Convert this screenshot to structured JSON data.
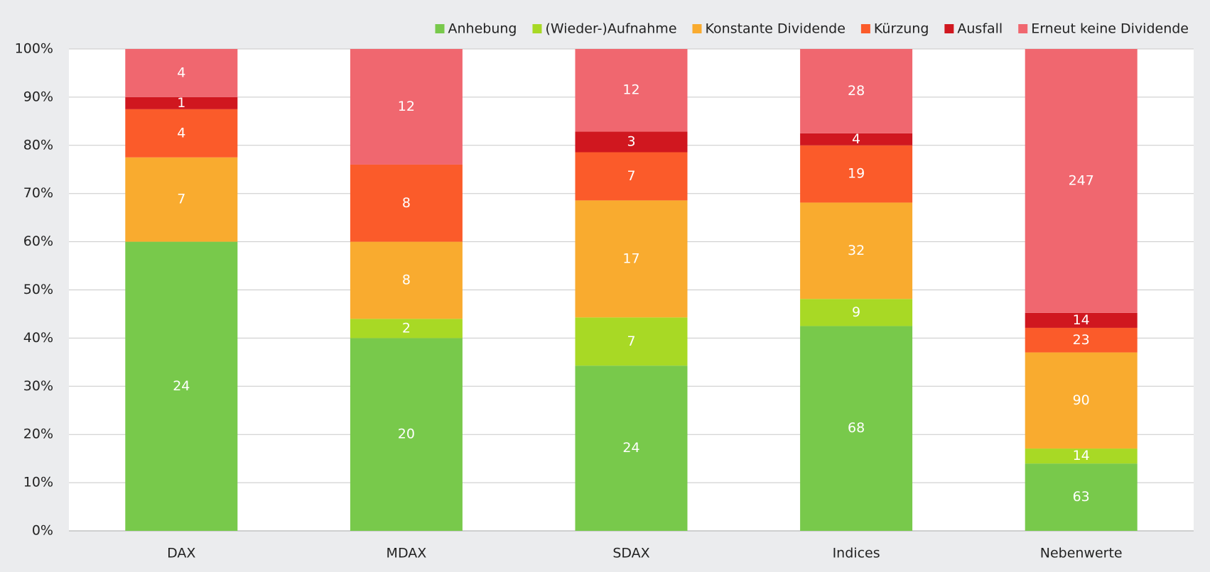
{
  "chart_data": {
    "type": "bar",
    "stacking": "percent",
    "categories": [
      "DAX",
      "MDAX",
      "SDAX",
      "Indices",
      "Nebenwerte"
    ],
    "series": [
      {
        "name": "Anhebung",
        "color": "#78c94b",
        "values": [
          24,
          20,
          24,
          68,
          63
        ]
      },
      {
        "name": "(Wieder-)Aufnahme",
        "color": "#a8d925",
        "values": [
          0,
          2,
          7,
          9,
          14
        ]
      },
      {
        "name": "Konstante Dividende",
        "color": "#f9ab2f",
        "values": [
          7,
          8,
          17,
          32,
          90
        ]
      },
      {
        "name": "Kürzung",
        "color": "#fb5b2a",
        "values": [
          4,
          8,
          7,
          19,
          23
        ]
      },
      {
        "name": "Ausfall",
        "color": "#d0171f",
        "values": [
          1,
          0,
          3,
          4,
          14
        ]
      },
      {
        "name": "Erneut keine Dividende",
        "color": "#f0676f",
        "values": [
          4,
          12,
          12,
          28,
          247
        ]
      }
    ],
    "ylim": [
      0,
      100
    ],
    "yticks": [
      {
        "value": 0,
        "label": "0%"
      },
      {
        "value": 10,
        "label": "10%"
      },
      {
        "value": 20,
        "label": "20%"
      },
      {
        "value": 30,
        "label": "30%"
      },
      {
        "value": 40,
        "label": "40%"
      },
      {
        "value": 50,
        "label": "50%"
      },
      {
        "value": 60,
        "label": "60%"
      },
      {
        "value": 70,
        "label": "70%"
      },
      {
        "value": 80,
        "label": "80%"
      },
      {
        "value": 90,
        "label": "90%"
      },
      {
        "value": 100,
        "label": "100%"
      }
    ],
    "grid": true,
    "legend": "top-right"
  }
}
